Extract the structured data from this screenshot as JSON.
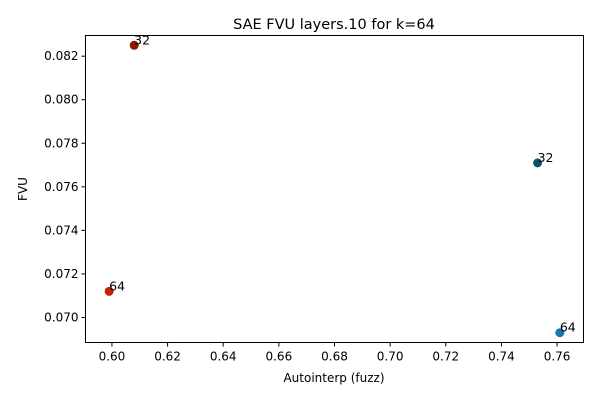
{
  "chart_data": {
    "type": "scatter",
    "title": "SAE FVU layers.10 for k=64",
    "xlabel": "Autointerp (fuzz)",
    "ylabel": "FVU",
    "xlim": [
      0.5905,
      0.7695
    ],
    "ylim": [
      0.06885,
      0.08295
    ],
    "grid": false,
    "xticks": [
      0.6,
      0.62,
      0.64,
      0.66,
      0.68,
      0.7,
      0.72,
      0.74,
      0.76
    ],
    "xtick_labels": [
      "0.60",
      "0.62",
      "0.64",
      "0.66",
      "0.68",
      "0.70",
      "0.72",
      "0.74",
      "0.76"
    ],
    "yticks": [
      0.07,
      0.072,
      0.074,
      0.076,
      0.078,
      0.08,
      0.082
    ],
    "ytick_labels": [
      "0.070",
      "0.072",
      "0.074",
      "0.076",
      "0.078",
      "0.080",
      "0.082"
    ],
    "points": [
      {
        "x": 0.608,
        "y": 0.0825,
        "label": "32",
        "color": "#8b1a00"
      },
      {
        "x": 0.599,
        "y": 0.0712,
        "label": "64",
        "color": "#c62200"
      },
      {
        "x": 0.753,
        "y": 0.0771,
        "label": "32",
        "color": "#0d4f73"
      },
      {
        "x": 0.761,
        "y": 0.0693,
        "label": "64",
        "color": "#1677b0"
      }
    ]
  }
}
